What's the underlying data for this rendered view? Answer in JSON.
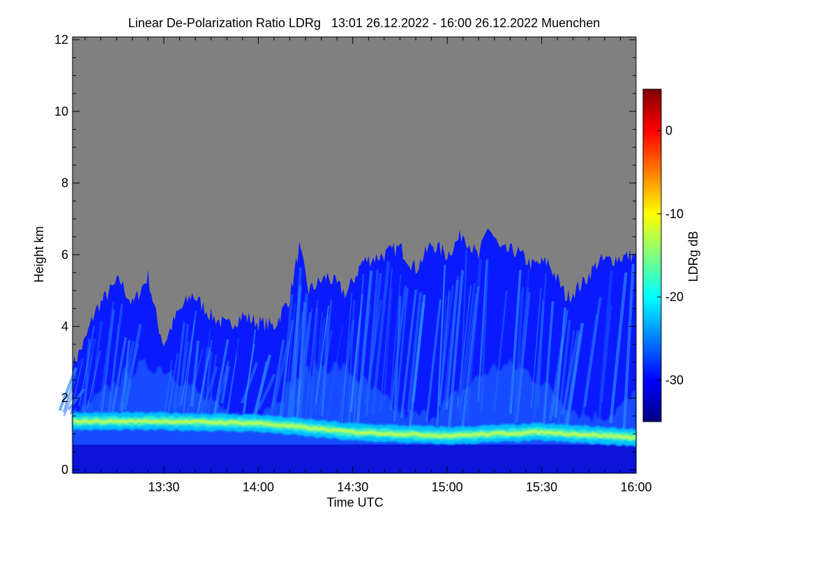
{
  "chart_data": {
    "type": "heatmap",
    "title": "Linear De-Polarization Ratio LDRg   13:01 26.12.2022 - 16:00 26.12.2022 Muenchen",
    "xlabel": "Time UTC",
    "ylabel": "Height km",
    "x_ticks": [
      "13:30",
      "14:00",
      "14:30",
      "15:00",
      "15:30",
      "16:00"
    ],
    "y_ticks": [
      0,
      2,
      4,
      6,
      8,
      10,
      12
    ],
    "xlim": [
      "13:01",
      "16:00"
    ],
    "ylim": [
      0,
      12
    ],
    "colorbar": {
      "label": "LDRg dB",
      "ticks": [
        0,
        -10,
        -20,
        -30
      ],
      "range": [
        -35,
        5
      ],
      "colors": [
        "#00007f",
        "#0000ff",
        "#007fff",
        "#00ffff",
        "#7fff7f",
        "#ffff00",
        "#ff7f00",
        "#ff0000",
        "#7f0000"
      ]
    },
    "no_signal_color": "#808080",
    "cloud_top_km": [
      {
        "time": "13:01",
        "height": 2.9
      },
      {
        "time": "13:05",
        "height": 3.6
      },
      {
        "time": "13:08",
        "height": 4.4
      },
      {
        "time": "13:12",
        "height": 4.9
      },
      {
        "time": "13:16",
        "height": 5.3
      },
      {
        "time": "13:20",
        "height": 4.6
      },
      {
        "time": "13:25",
        "height": 5.4
      },
      {
        "time": "13:28",
        "height": 4.1
      },
      {
        "time": "13:30",
        "height": 3.5
      },
      {
        "time": "13:34",
        "height": 4.3
      },
      {
        "time": "13:39",
        "height": 4.9
      },
      {
        "time": "13:45",
        "height": 4.3
      },
      {
        "time": "13:50",
        "height": 4.0
      },
      {
        "time": "13:55",
        "height": 4.3
      },
      {
        "time": "14:00",
        "height": 4.1
      },
      {
        "time": "14:05",
        "height": 4.0
      },
      {
        "time": "14:10",
        "height": 4.8
      },
      {
        "time": "14:13",
        "height": 6.2
      },
      {
        "time": "14:16",
        "height": 5.0
      },
      {
        "time": "14:22",
        "height": 5.4
      },
      {
        "time": "14:28",
        "height": 4.9
      },
      {
        "time": "14:33",
        "height": 5.8
      },
      {
        "time": "14:40",
        "height": 6.0
      },
      {
        "time": "14:45",
        "height": 6.2
      },
      {
        "time": "14:50",
        "height": 5.6
      },
      {
        "time": "14:55",
        "height": 6.3
      },
      {
        "time": "15:00",
        "height": 6.0
      },
      {
        "time": "15:05",
        "height": 6.6
      },
      {
        "time": "15:10",
        "height": 5.9
      },
      {
        "time": "15:13",
        "height": 6.8
      },
      {
        "time": "15:17",
        "height": 6.1
      },
      {
        "time": "15:22",
        "height": 6.1
      },
      {
        "time": "15:27",
        "height": 5.7
      },
      {
        "time": "15:32",
        "height": 5.8
      },
      {
        "time": "15:38",
        "height": 4.8
      },
      {
        "time": "15:43",
        "height": 5.2
      },
      {
        "time": "15:48",
        "height": 5.8
      },
      {
        "time": "15:54",
        "height": 5.9
      },
      {
        "time": "16:00",
        "height": 6.0
      }
    ],
    "melting_layer_km": [
      {
        "time": "13:01",
        "height": 1.35
      },
      {
        "time": "13:30",
        "height": 1.35
      },
      {
        "time": "14:00",
        "height": 1.3
      },
      {
        "time": "14:30",
        "height": 1.05
      },
      {
        "time": "15:00",
        "height": 0.95
      },
      {
        "time": "15:30",
        "height": 1.05
      },
      {
        "time": "16:00",
        "height": 0.9
      }
    ],
    "grid": false,
    "legend": "colorbar-right"
  }
}
